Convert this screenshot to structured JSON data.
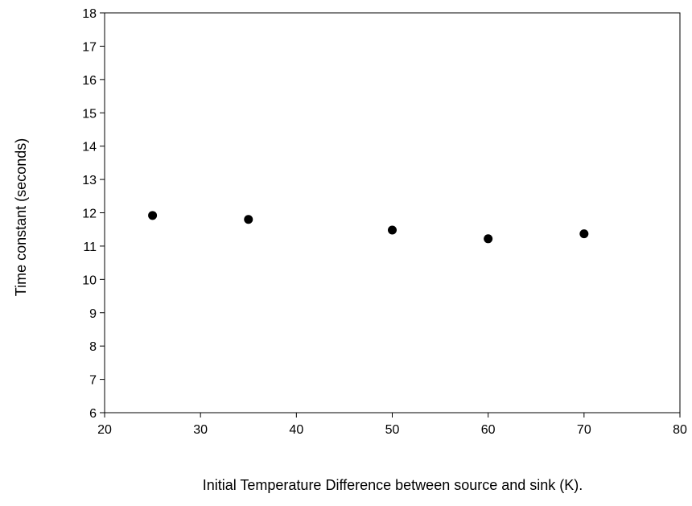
{
  "chart_data": {
    "type": "scatter",
    "title": "",
    "xlabel": "Initial Temperature Difference between source and sink (K).",
    "ylabel": "Time constant (seconds)",
    "xlim": [
      20,
      80
    ],
    "ylim": [
      6,
      18
    ],
    "xticks": [
      20,
      30,
      40,
      50,
      60,
      70,
      80
    ],
    "yticks": [
      6,
      7,
      8,
      9,
      10,
      11,
      12,
      13,
      14,
      15,
      16,
      17,
      18
    ],
    "grid": false,
    "legend": "none",
    "marker_color": "#000000",
    "series": [
      {
        "x": [
          25,
          35,
          50,
          60,
          70
        ],
        "y": [
          11.92,
          11.8,
          11.48,
          11.22,
          11.37
        ]
      }
    ]
  }
}
